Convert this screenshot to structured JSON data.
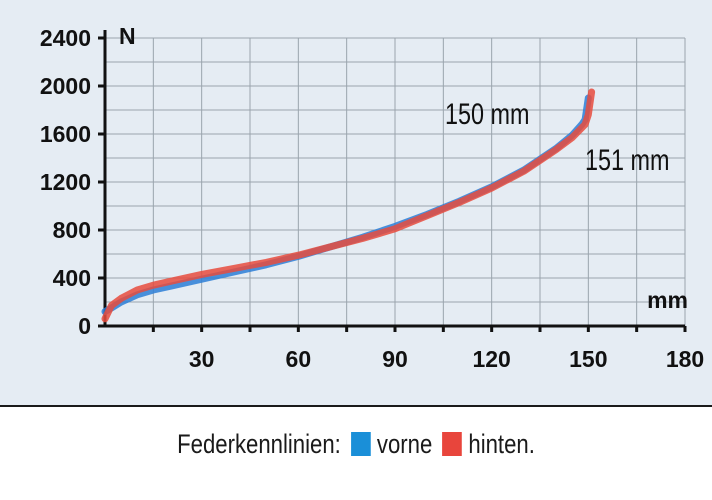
{
  "chart_data": {
    "type": "line",
    "xlabel": "mm",
    "ylabel": "N",
    "xlim": [
      0,
      180
    ],
    "ylim": [
      0,
      2400
    ],
    "x_ticks": [
      30,
      60,
      90,
      120,
      150,
      180
    ],
    "y_ticks": [
      0,
      400,
      800,
      1200,
      1600,
      2000,
      2400
    ],
    "grid": true,
    "annotations": [
      "150 mm",
      "151 mm"
    ],
    "legend_position": "bottom",
    "series": [
      {
        "name": "vorne",
        "color": "#2d7fd6",
        "x": [
          0,
          2,
          5,
          10,
          15,
          20,
          30,
          40,
          50,
          60,
          70,
          80,
          90,
          100,
          110,
          120,
          130,
          140,
          145,
          148,
          149,
          150
        ],
        "y": [
          120,
          150,
          200,
          260,
          300,
          330,
          390,
          450,
          510,
          580,
          660,
          740,
          830,
          930,
          1040,
          1160,
          1300,
          1480,
          1590,
          1680,
          1720,
          1900
        ]
      },
      {
        "name": "hinten",
        "color": "#e84c3d",
        "x": [
          0,
          2,
          5,
          10,
          15,
          20,
          30,
          40,
          50,
          60,
          70,
          80,
          90,
          100,
          110,
          120,
          130,
          140,
          145,
          149,
          150,
          151
        ],
        "y": [
          60,
          170,
          230,
          300,
          340,
          370,
          430,
          480,
          530,
          590,
          660,
          730,
          810,
          920,
          1030,
          1150,
          1290,
          1470,
          1570,
          1680,
          1760,
          1950
        ]
      }
    ]
  },
  "legend": {
    "prefix": "Federkennlinien:",
    "items": [
      {
        "label": "vorne",
        "color": "#1a8fd8"
      },
      {
        "label": "hinten",
        "color": "#e8453c"
      }
    ],
    "suffix": "."
  }
}
